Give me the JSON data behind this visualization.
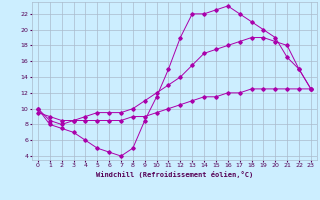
{
  "xlabel": "Windchill (Refroidissement éolien,°C)",
  "background_color": "#cceeff",
  "line_color": "#aa00aa",
  "grid_color": "#aabbcc",
  "xlim": [
    -0.5,
    23.5
  ],
  "ylim": [
    3.5,
    23.5
  ],
  "yticks": [
    4,
    6,
    8,
    10,
    12,
    14,
    16,
    18,
    20,
    22
  ],
  "xticks": [
    0,
    1,
    2,
    3,
    4,
    5,
    6,
    7,
    8,
    9,
    10,
    11,
    12,
    13,
    14,
    15,
    16,
    17,
    18,
    19,
    20,
    21,
    22,
    23
  ],
  "line1_x": [
    0,
    1,
    2,
    3,
    4,
    5,
    6,
    7,
    8,
    9,
    10,
    11,
    12,
    13,
    14,
    15,
    16,
    17,
    18,
    19,
    20,
    21,
    22,
    23
  ],
  "line1_y": [
    10,
    8,
    7.5,
    7,
    6,
    5,
    4.5,
    4,
    5,
    8.5,
    11.5,
    15,
    19,
    22,
    22,
    22.5,
    23,
    22,
    21,
    20,
    19,
    16.5,
    15,
    12.5
  ],
  "line2_x": [
    0,
    1,
    2,
    3,
    4,
    5,
    6,
    7,
    8,
    9,
    10,
    11,
    12,
    13,
    14,
    15,
    16,
    17,
    18,
    19,
    20,
    21,
    22,
    23
  ],
  "line2_y": [
    10,
    8.5,
    8,
    8.5,
    9,
    9.5,
    9.5,
    9.5,
    10,
    11,
    12,
    13,
    14,
    15.5,
    17,
    17.5,
    18,
    18.5,
    19,
    19,
    18.5,
    18,
    15,
    12.5
  ],
  "line3_x": [
    0,
    1,
    2,
    3,
    4,
    5,
    6,
    7,
    8,
    9,
    10,
    11,
    12,
    13,
    14,
    15,
    16,
    17,
    18,
    19,
    20,
    21,
    22,
    23
  ],
  "line3_y": [
    9.5,
    9,
    8.5,
    8.5,
    8.5,
    8.5,
    8.5,
    8.5,
    9,
    9,
    9.5,
    10,
    10.5,
    11,
    11.5,
    11.5,
    12,
    12,
    12.5,
    12.5,
    12.5,
    12.5,
    12.5,
    12.5
  ]
}
